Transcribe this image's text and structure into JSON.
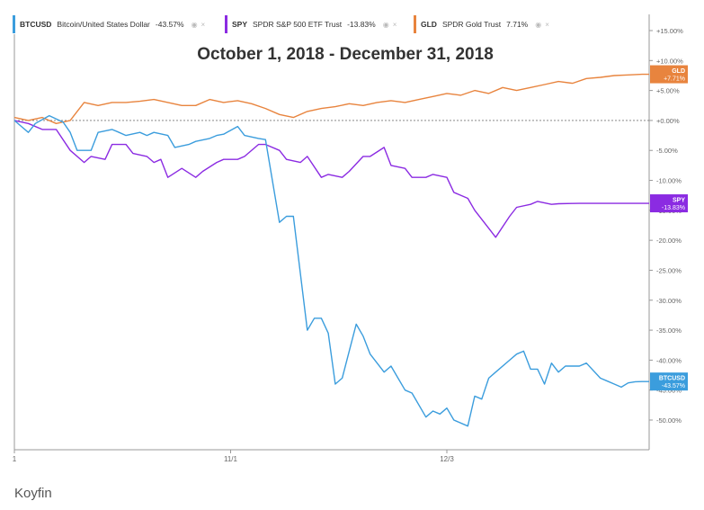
{
  "legend": [
    {
      "symbol": "BTCUSD",
      "name": "Bitcoin/United States Dollar",
      "value": "-43.57%",
      "color": "#3b9ddd"
    },
    {
      "symbol": "SPY",
      "name": "SPDR S&P 500 ETF Trust",
      "value": "-13.83%",
      "color": "#8b2be2"
    },
    {
      "symbol": "GLD",
      "name": "SPDR Gold Trust",
      "value": "7.71%",
      "color": "#e8843e"
    }
  ],
  "legend_controls": {
    "eye": "◉",
    "close": "×"
  },
  "source": "Koyfin",
  "chart_data": {
    "type": "line",
    "title": "October 1, 2018 - December 31, 2018",
    "ylim": [
      -55,
      17
    ],
    "y_ticks": [
      15,
      10,
      5,
      0,
      -5,
      -10,
      -15,
      -20,
      -25,
      -30,
      -35,
      -40,
      -45,
      -50
    ],
    "y_tick_labels": [
      "+15.00%",
      "+10.00%",
      "+5.00%",
      "+0.00%",
      "-5.00%",
      "-10.00%",
      "-15.00%",
      "-20.00%",
      "-25.00%",
      "-30.00%",
      "-35.00%",
      "-40.00%",
      "-45.00%",
      "-50.00%"
    ],
    "x_ticks": [
      0,
      31,
      62
    ],
    "x_tick_labels": [
      "1",
      "11/1",
      "12/3"
    ],
    "xlim": [
      0,
      91
    ],
    "grid": false,
    "zero_line": true,
    "series": [
      {
        "name": "BTCUSD",
        "color": "#3b9ddd",
        "end_label": "BTCUSD",
        "end_value": "-43.57%",
        "end_y": -43.57,
        "x": [
          0,
          1,
          2,
          3,
          5,
          7,
          8,
          9,
          11,
          12,
          14,
          15,
          16,
          18,
          19,
          20,
          22,
          23,
          25,
          26,
          28,
          29,
          30,
          32,
          33,
          35,
          36,
          38,
          39,
          40,
          42,
          43,
          44,
          45,
          46,
          47,
          49,
          50,
          51,
          53,
          54,
          55,
          56,
          57,
          59,
          60,
          61,
          62,
          63,
          65,
          66,
          67,
          68,
          69,
          71,
          72,
          73,
          74,
          75,
          76,
          77,
          78,
          79,
          81,
          82,
          84,
          85,
          86,
          87,
          88,
          89,
          90,
          91
        ],
        "y": [
          0,
          -1,
          -2,
          -0.5,
          0.8,
          -0.3,
          -2,
          -5,
          -5,
          -2,
          -1.5,
          -2,
          -2.5,
          -2,
          -2.5,
          -2,
          -2.5,
          -4.5,
          -4,
          -3.5,
          -3,
          -2.5,
          -2.3,
          -1,
          -2.5,
          -3,
          -3.2,
          -17,
          -16,
          -16,
          -35,
          -33,
          -33,
          -35.5,
          -44,
          -43,
          -34,
          -36,
          -39,
          -42,
          -41,
          -43,
          -45,
          -45.5,
          -49.5,
          -48.5,
          -49,
          -48,
          -50,
          -51,
          -46,
          -46.5,
          -43,
          -42,
          -40,
          -39,
          -38.5,
          -41.5,
          -41.5,
          -44,
          -40.5,
          -42,
          -41,
          -41,
          -40.5,
          -43,
          -43.5,
          -44,
          -44.5,
          -43.8,
          -43.6,
          -43.57,
          -43.57
        ]
      },
      {
        "name": "SPY",
        "color": "#8b2be2",
        "end_label": "SPY",
        "end_value": "-13.83%",
        "end_y": -13.83,
        "x": [
          0,
          2,
          4,
          6,
          8,
          10,
          11,
          13,
          14,
          16,
          17,
          19,
          20,
          21,
          22,
          24,
          26,
          27,
          29,
          30,
          32,
          33,
          35,
          36,
          38,
          39,
          41,
          42,
          44,
          45,
          47,
          48,
          50,
          51,
          53,
          54,
          56,
          57,
          59,
          60,
          62,
          63,
          65,
          66,
          68,
          69,
          71,
          72,
          74,
          75,
          77,
          78,
          80,
          81,
          83,
          84,
          86,
          87,
          89,
          91
        ],
        "y": [
          0,
          -0.5,
          -1.5,
          -1.5,
          -5,
          -7,
          -6,
          -6.5,
          -4,
          -4,
          -5.5,
          -6,
          -7,
          -6.5,
          -9.5,
          -8,
          -9.5,
          -8.5,
          -7,
          -6.5,
          -6.5,
          -6,
          -4,
          -4,
          -5,
          -6.5,
          -7,
          -6,
          -9.5,
          -9,
          -9.5,
          -8.5,
          -6,
          -6,
          -4.5,
          -7.5,
          -8,
          -9.5,
          -9.5,
          -9,
          -9.5,
          -12,
          -13,
          -15,
          -18,
          -19.5,
          -16,
          -14.5,
          -14,
          -13.5,
          -14,
          -13.9,
          -13.85,
          -13.83,
          -13.83,
          -13.83,
          -13.83,
          -13.83,
          -13.83,
          -13.83
        ],
        "end_x": 91
      },
      {
        "name": "GLD",
        "color": "#e8843e",
        "end_label": "GLD",
        "end_value": "+7.71%",
        "end_y": 7.71,
        "x": [
          0,
          2,
          4,
          6,
          8,
          10,
          12,
          14,
          16,
          18,
          20,
          22,
          24,
          26,
          28,
          30,
          32,
          34,
          36,
          38,
          40,
          42,
          44,
          46,
          48,
          50,
          52,
          54,
          56,
          58,
          60,
          62,
          64,
          66,
          68,
          70,
          72,
          74,
          76,
          78,
          80,
          82,
          84,
          86,
          88,
          90,
          91
        ],
        "y": [
          0.5,
          0,
          0.5,
          -0.5,
          0,
          3,
          2.5,
          3,
          3,
          3.2,
          3.5,
          3,
          2.5,
          2.5,
          3.5,
          3,
          3.3,
          2.8,
          2,
          1,
          0.5,
          1.5,
          2,
          2.3,
          2.8,
          2.5,
          3,
          3.3,
          3,
          3.5,
          4,
          4.5,
          4.2,
          5,
          4.5,
          5.5,
          5,
          5.5,
          6,
          6.5,
          6.2,
          7,
          7.2,
          7.5,
          7.6,
          7.7,
          7.71
        ]
      }
    ]
  }
}
